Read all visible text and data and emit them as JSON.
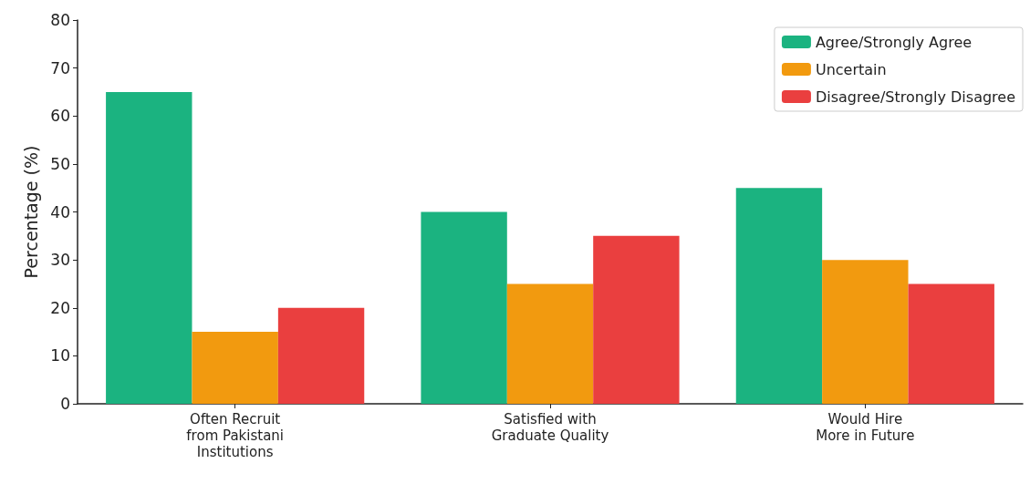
{
  "chart_data": {
    "type": "bar",
    "ylabel": "Percentage (%)",
    "categories": [
      "Often Recruit\nfrom Pakistani\nInstitutions",
      "Satisfied with\nGraduate Quality",
      "Would Hire\nMore in Future"
    ],
    "series": [
      {
        "name": "Agree/Strongly Agree",
        "color": "#1bb380",
        "values": [
          65,
          40,
          45
        ]
      },
      {
        "name": "Uncertain",
        "color": "#f29a0f",
        "values": [
          15,
          25,
          30
        ]
      },
      {
        "name": "Disagree/Strongly Disagree",
        "color": "#ea3f3f",
        "values": [
          20,
          35,
          25
        ]
      }
    ],
    "ylim": [
      0,
      80
    ],
    "yticks": [
      0,
      10,
      20,
      30,
      40,
      50,
      60,
      70,
      80
    ],
    "grid": false,
    "legend": "top right"
  }
}
